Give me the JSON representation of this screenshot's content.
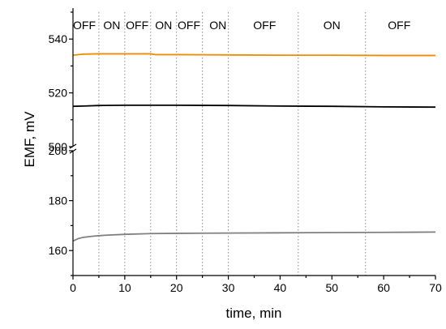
{
  "chart_data": {
    "type": "line",
    "xlabel": "time, min",
    "ylabel": "EMF, mV",
    "xlim": [
      0,
      70
    ],
    "x_ticks": [
      "0",
      "10",
      "20",
      "30",
      "40",
      "50",
      "60",
      "70"
    ],
    "y_break": true,
    "y_upper": {
      "range": [
        500,
        550
      ],
      "ticks": [
        "500",
        "520",
        "540"
      ]
    },
    "y_lower": {
      "range": [
        150,
        200
      ],
      "ticks": [
        "160",
        "180",
        "200"
      ]
    },
    "phase_boundaries": [
      5,
      10,
      15,
      20,
      25,
      30,
      43.5,
      56.5
    ],
    "phases": [
      {
        "label": "OFF",
        "x": 2.2
      },
      {
        "label": "ON",
        "x": 7.5
      },
      {
        "label": "OFF",
        "x": 12.4
      },
      {
        "label": "ON",
        "x": 17.5
      },
      {
        "label": "OFF",
        "x": 22.4
      },
      {
        "label": "ON",
        "x": 28.0
      },
      {
        "label": "OFF",
        "x": 37.0
      },
      {
        "label": "ON",
        "x": 50.0
      },
      {
        "label": "OFF",
        "x": 63.0
      }
    ],
    "series": [
      {
        "color": "#f08a00",
        "x": [
          0,
          2,
          5,
          10,
          15,
          16,
          20,
          30,
          40,
          50,
          60,
          70
        ],
        "y": [
          534.0,
          534.4,
          534.5,
          534.5,
          534.5,
          534.2,
          534.2,
          534.1,
          534.0,
          534.0,
          533.9,
          533.9
        ]
      },
      {
        "color": "#000000",
        "x": [
          0,
          2,
          5,
          10,
          20,
          30,
          40,
          50,
          60,
          70
        ],
        "y": [
          515.0,
          515.1,
          515.3,
          515.4,
          515.4,
          515.3,
          515.1,
          515.0,
          514.8,
          514.7
        ]
      },
      {
        "color": "#808080",
        "x": [
          0,
          1,
          2,
          4,
          6,
          10,
          15,
          20,
          30,
          40,
          50,
          60,
          70
        ],
        "y": [
          163.8,
          164.8,
          165.3,
          165.8,
          166.1,
          166.5,
          166.8,
          166.9,
          167.0,
          167.1,
          167.2,
          167.3,
          167.4
        ]
      }
    ]
  }
}
